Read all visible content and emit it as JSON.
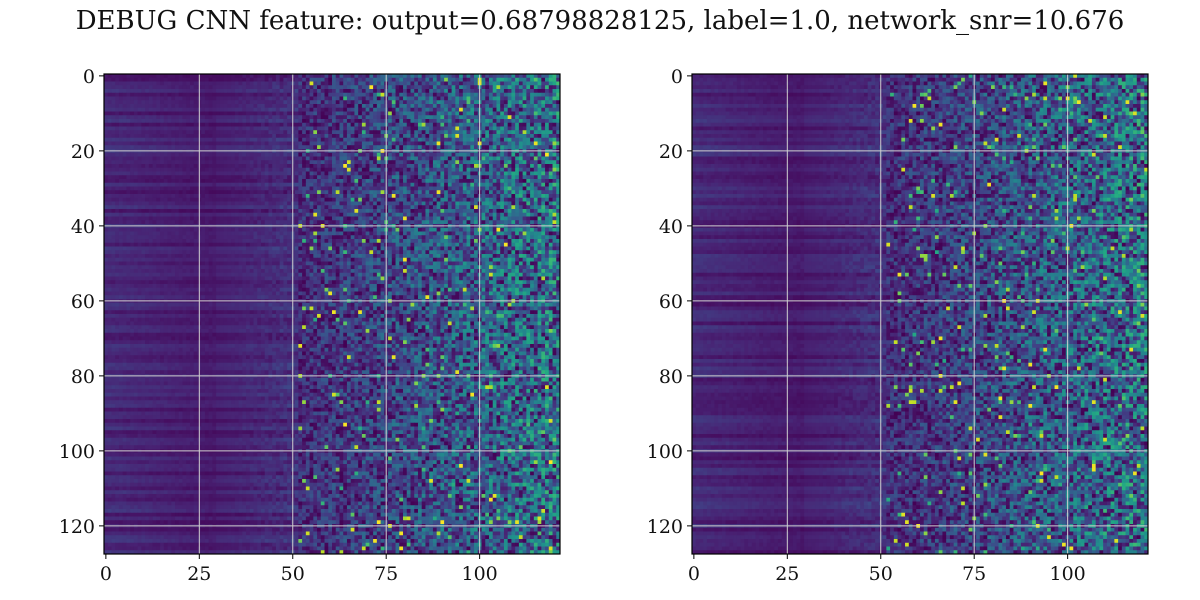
{
  "figure_title": "DEBUG CNN feature: output=0.68798828125, label=1.0, network_snr=10.676",
  "chart_data": [
    {
      "type": "heatmap",
      "title": "",
      "rows": 128,
      "cols": 122,
      "xlim": [
        0,
        121
      ],
      "ylim": [
        127,
        0
      ],
      "x_ticks": [
        "0",
        "25",
        "50",
        "75",
        "100"
      ],
      "y_ticks": [
        "0",
        "20",
        "40",
        "60",
        "80",
        "100",
        "120"
      ],
      "colormap": "viridis",
      "grid": true,
      "grid_x": [
        25,
        50,
        75,
        100
      ],
      "grid_y": [
        20,
        40,
        60,
        80,
        100,
        120
      ]
    },
    {
      "type": "heatmap",
      "title": "",
      "rows": 128,
      "cols": 122,
      "xlim": [
        0,
        121
      ],
      "ylim": [
        127,
        0
      ],
      "x_ticks": [
        "0",
        "25",
        "50",
        "75",
        "100"
      ],
      "y_ticks": [
        "0",
        "20",
        "40",
        "60",
        "80",
        "100",
        "120"
      ],
      "colormap": "viridis",
      "grid": true,
      "grid_x": [
        25,
        50,
        75,
        100
      ],
      "grid_y": [
        20,
        40,
        60,
        80,
        100,
        120
      ]
    }
  ]
}
